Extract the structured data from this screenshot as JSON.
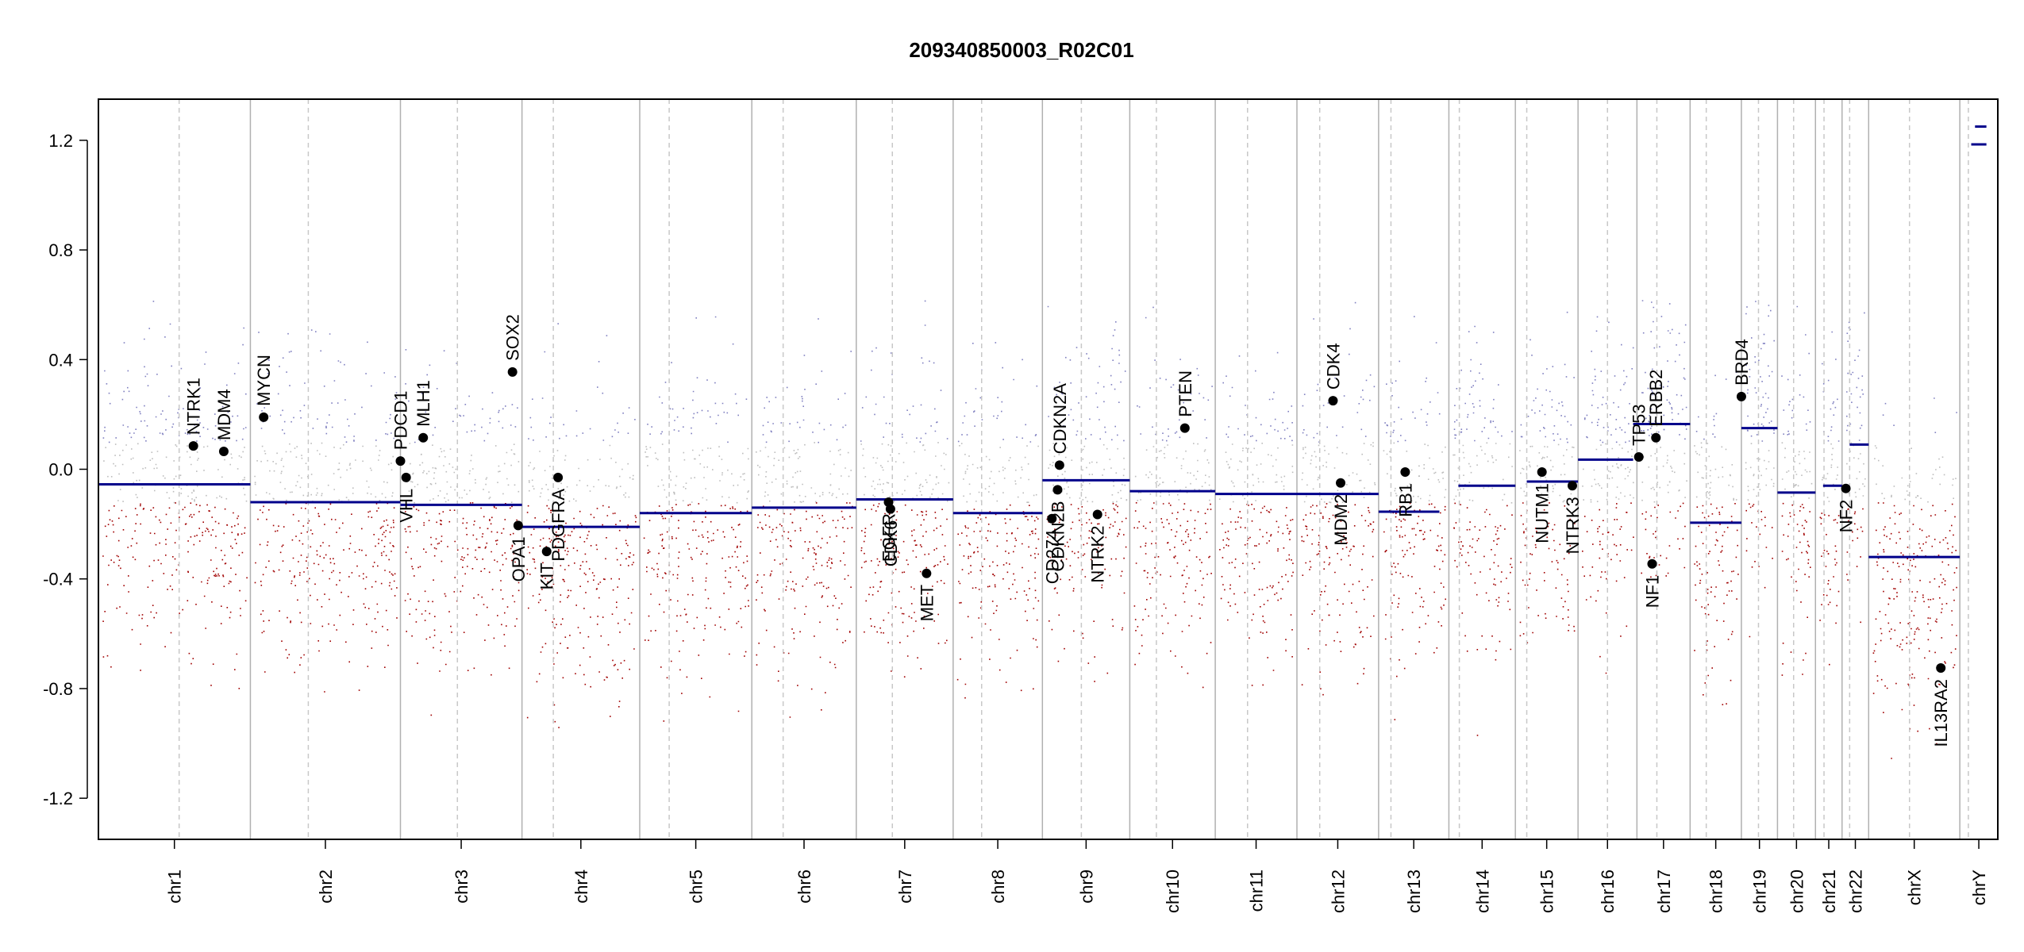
{
  "chart_data": {
    "type": "scatter",
    "title": "209340850003_R02C01",
    "xlabel": "",
    "ylabel": "",
    "ylim": [
      -1.35,
      1.35
    ],
    "yticks": [
      -1.2,
      -0.8,
      -0.4,
      0.0,
      0.4,
      0.8,
      1.2
    ],
    "ytick_labels": [
      "-1.2",
      "-0.8",
      "-0.4",
      "0.0",
      "0.4",
      "0.8",
      "1.2"
    ],
    "grid": false,
    "colors": {
      "gain": "#8080c0",
      "neutral": "#bdbdbd",
      "loss": "#a00000",
      "segment": "#00008b",
      "gene_point": "#000000",
      "boundary": "#b0b0b0",
      "centromere": "#c8c8c8"
    },
    "chromosomes": [
      {
        "name": "chr1",
        "start": 0.0,
        "end": 0.08,
        "centromere": 0.0425
      },
      {
        "name": "chr2",
        "start": 0.08,
        "end": 0.159,
        "centromere": 0.1105
      },
      {
        "name": "chr3",
        "start": 0.159,
        "end": 0.223,
        "centromere": 0.189
      },
      {
        "name": "chr4",
        "start": 0.223,
        "end": 0.285,
        "centromere": 0.2395
      },
      {
        "name": "chr5",
        "start": 0.285,
        "end": 0.344,
        "centromere": 0.3005
      },
      {
        "name": "chr6",
        "start": 0.344,
        "end": 0.399,
        "centromere": 0.3605
      },
      {
        "name": "chr7",
        "start": 0.399,
        "end": 0.45,
        "centromere": 0.418
      },
      {
        "name": "chr8",
        "start": 0.45,
        "end": 0.497,
        "centromere": 0.465
      },
      {
        "name": "chr9",
        "start": 0.497,
        "end": 0.543,
        "centromere": 0.5175
      },
      {
        "name": "chr10",
        "start": 0.543,
        "end": 0.588,
        "centromere": 0.557
      },
      {
        "name": "chr11",
        "start": 0.588,
        "end": 0.631,
        "centromere": 0.605
      },
      {
        "name": "chr12",
        "start": 0.631,
        "end": 0.674,
        "centromere": 0.643
      },
      {
        "name": "chr13",
        "start": 0.674,
        "end": 0.711,
        "centromere": 0.6805
      },
      {
        "name": "chr14",
        "start": 0.711,
        "end": 0.746,
        "centromere": 0.7165
      },
      {
        "name": "chr15",
        "start": 0.746,
        "end": 0.779,
        "centromere": 0.752
      },
      {
        "name": "chr16",
        "start": 0.779,
        "end": 0.81,
        "centromere": 0.7945
      },
      {
        "name": "chr17",
        "start": 0.81,
        "end": 0.838,
        "centromere": 0.8205
      },
      {
        "name": "chr18",
        "start": 0.838,
        "end": 0.865,
        "centromere": 0.8465
      },
      {
        "name": "chr19",
        "start": 0.865,
        "end": 0.884,
        "centromere": 0.874
      },
      {
        "name": "chr20",
        "start": 0.884,
        "end": 0.904,
        "centromere": 0.8925
      },
      {
        "name": "chr21",
        "start": 0.904,
        "end": 0.918,
        "centromere": 0.9085
      },
      {
        "name": "chr22",
        "start": 0.918,
        "end": 0.932,
        "centromere": 0.922
      },
      {
        "name": "chrX",
        "start": 0.932,
        "end": 0.98,
        "centromere": 0.9535
      },
      {
        "name": "chrY",
        "start": 0.98,
        "end": 1.0,
        "centromere": 0.9845
      }
    ],
    "segments": [
      {
        "chrom": "chr1",
        "x0": 0.0,
        "x1": 0.08,
        "value": -0.055
      },
      {
        "chrom": "chr2",
        "x0": 0.08,
        "x1": 0.159,
        "value": -0.12
      },
      {
        "chrom": "chr3",
        "x0": 0.159,
        "x1": 0.223,
        "value": -0.13
      },
      {
        "chrom": "chr4",
        "x0": 0.223,
        "x1": 0.285,
        "value": -0.21
      },
      {
        "chrom": "chr5",
        "x0": 0.285,
        "x1": 0.344,
        "value": -0.16
      },
      {
        "chrom": "chr6",
        "x0": 0.344,
        "x1": 0.399,
        "value": -0.14
      },
      {
        "chrom": "chr7",
        "x0": 0.399,
        "x1": 0.45,
        "value": -0.11
      },
      {
        "chrom": "chr8",
        "x0": 0.45,
        "x1": 0.497,
        "value": -0.16
      },
      {
        "chrom": "chr9",
        "x0": 0.497,
        "x1": 0.543,
        "value": -0.04
      },
      {
        "chrom": "chr10",
        "x0": 0.543,
        "x1": 0.588,
        "value": -0.08
      },
      {
        "chrom": "chr11",
        "x0": 0.588,
        "x1": 0.631,
        "value": -0.09
      },
      {
        "chrom": "chr12",
        "x0": 0.631,
        "x1": 0.674,
        "value": -0.09
      },
      {
        "chrom": "chr13",
        "x0": 0.674,
        "x1": 0.706,
        "value": -0.155
      },
      {
        "chrom": "chr14",
        "x0": 0.716,
        "x1": 0.746,
        "value": -0.06
      },
      {
        "chrom": "chr15",
        "x0": 0.752,
        "x1": 0.779,
        "value": -0.045
      },
      {
        "chrom": "chr16",
        "x0": 0.779,
        "x1": 0.808,
        "value": 0.035
      },
      {
        "chrom": "chr17",
        "x0": 0.808,
        "x1": 0.838,
        "value": 0.165
      },
      {
        "chrom": "chr18",
        "x0": 0.838,
        "x1": 0.865,
        "value": -0.195
      },
      {
        "chrom": "chr19",
        "x0": 0.865,
        "x1": 0.884,
        "value": 0.15
      },
      {
        "chrom": "chr20",
        "x0": 0.884,
        "x1": 0.904,
        "value": -0.085
      },
      {
        "chrom": "chr21",
        "x0": 0.908,
        "x1": 0.918,
        "value": -0.06
      },
      {
        "chrom": "chr22",
        "x0": 0.922,
        "x1": 0.932,
        "value": 0.09
      },
      {
        "chrom": "chrX",
        "x0": 0.932,
        "x1": 0.98,
        "value": -0.32
      },
      {
        "chrom": "chrY",
        "x0": 0.986,
        "x1": 0.994,
        "value": 1.185
      },
      {
        "chrom": "chrY",
        "x0": 0.988,
        "x1": 0.994,
        "value": 1.25
      }
    ],
    "genes": [
      {
        "name": "NTRK1",
        "x": 0.05,
        "value": 0.085,
        "label_side": "above"
      },
      {
        "name": "MDM4",
        "x": 0.066,
        "value": 0.065,
        "label_side": "above"
      },
      {
        "name": "MYCN",
        "x": 0.087,
        "value": 0.19,
        "label_side": "above"
      },
      {
        "name": "PDCD1",
        "x": 0.159,
        "value": 0.03,
        "label_side": "above"
      },
      {
        "name": "VHL",
        "x": 0.162,
        "value": -0.03,
        "label_side": "below"
      },
      {
        "name": "MLH1",
        "x": 0.171,
        "value": 0.115,
        "label_side": "above"
      },
      {
        "name": "SOX2",
        "x": 0.218,
        "value": 0.355,
        "label_side": "above"
      },
      {
        "name": "OPA1",
        "x": 0.221,
        "value": -0.205,
        "label_side": "below"
      },
      {
        "name": "KIT",
        "x": 0.236,
        "value": -0.3,
        "label_side": "below"
      },
      {
        "name": "PDGFRA",
        "x": 0.242,
        "value": -0.03,
        "label_side": "below"
      },
      {
        "name": "EGFR",
        "x": 0.416,
        "value": -0.12,
        "label_side": "below"
      },
      {
        "name": "CDK6",
        "x": 0.417,
        "value": -0.145,
        "label_side": "below"
      },
      {
        "name": "MET",
        "x": 0.436,
        "value": -0.38,
        "label_side": "below"
      },
      {
        "name": "CD274",
        "x": 0.502,
        "value": -0.18,
        "label_side": "below"
      },
      {
        "name": "CDKN2B",
        "x": 0.505,
        "value": -0.075,
        "label_side": "below"
      },
      {
        "name": "CDKN2A",
        "x": 0.506,
        "value": 0.015,
        "label_side": "above"
      },
      {
        "name": "NTRK2",
        "x": 0.526,
        "value": -0.165,
        "label_side": "below"
      },
      {
        "name": "PTEN",
        "x": 0.572,
        "value": 0.15,
        "label_side": "above"
      },
      {
        "name": "CDK4",
        "x": 0.65,
        "value": 0.25,
        "label_side": "above"
      },
      {
        "name": "MDM2",
        "x": 0.654,
        "value": -0.05,
        "label_side": "below"
      },
      {
        "name": "RB1",
        "x": 0.688,
        "value": -0.01,
        "label_side": "below"
      },
      {
        "name": "NUTM1",
        "x": 0.76,
        "value": -0.01,
        "label_side": "below"
      },
      {
        "name": "NTRK3",
        "x": 0.776,
        "value": -0.06,
        "label_side": "below"
      },
      {
        "name": "TP53",
        "x": 0.811,
        "value": 0.045,
        "label_side": "above"
      },
      {
        "name": "NF1",
        "x": 0.818,
        "value": -0.345,
        "label_side": "below"
      },
      {
        "name": "ERBB2",
        "x": 0.82,
        "value": 0.115,
        "label_side": "above"
      },
      {
        "name": "BRD4",
        "x": 0.865,
        "value": 0.265,
        "label_side": "above"
      },
      {
        "name": "NF2",
        "x": 0.92,
        "value": -0.07,
        "label_side": "below"
      },
      {
        "name": "IL13RA2",
        "x": 0.97,
        "value": -0.725,
        "label_side": "below"
      }
    ]
  }
}
